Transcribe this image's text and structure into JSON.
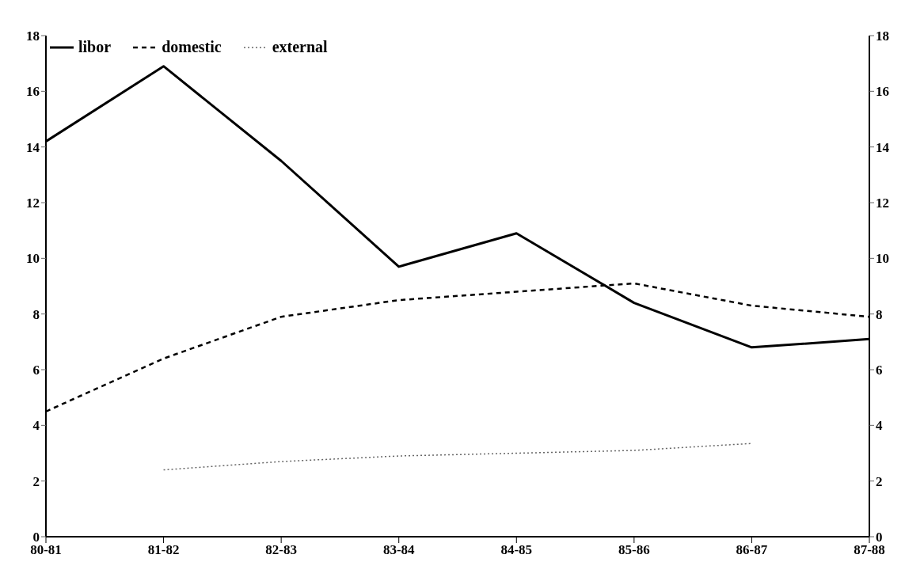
{
  "chart_data": {
    "type": "line",
    "categories": [
      "80-81",
      "81-82",
      "82-83",
      "83-84",
      "84-85",
      "85-86",
      "86-87",
      "87-88"
    ],
    "series": [
      {
        "name": "libor",
        "color": "#000000",
        "line_style": "solid",
        "values": [
          14.2,
          16.9,
          13.5,
          9.7,
          10.9,
          8.4,
          6.8,
          7.1
        ]
      },
      {
        "name": "domestic",
        "color": "#000000",
        "line_style": "dashed",
        "values": [
          4.5,
          6.4,
          7.9,
          8.5,
          8.8,
          9.1,
          8.3,
          7.9
        ]
      },
      {
        "name": "external",
        "color": "#666666",
        "line_style": "dotted",
        "values": [
          null,
          2.4,
          2.7,
          2.9,
          3.0,
          3.1,
          3.35,
          null
        ]
      }
    ],
    "ylim": [
      0,
      18
    ],
    "yticks": [
      0,
      2,
      4,
      6,
      8,
      10,
      12,
      14,
      16,
      18
    ],
    "y2lim": [
      0,
      18
    ],
    "y2ticks": [
      0,
      2,
      4,
      6,
      8,
      10,
      12,
      14,
      16,
      18
    ],
    "legend": "top left",
    "marker": "none"
  }
}
